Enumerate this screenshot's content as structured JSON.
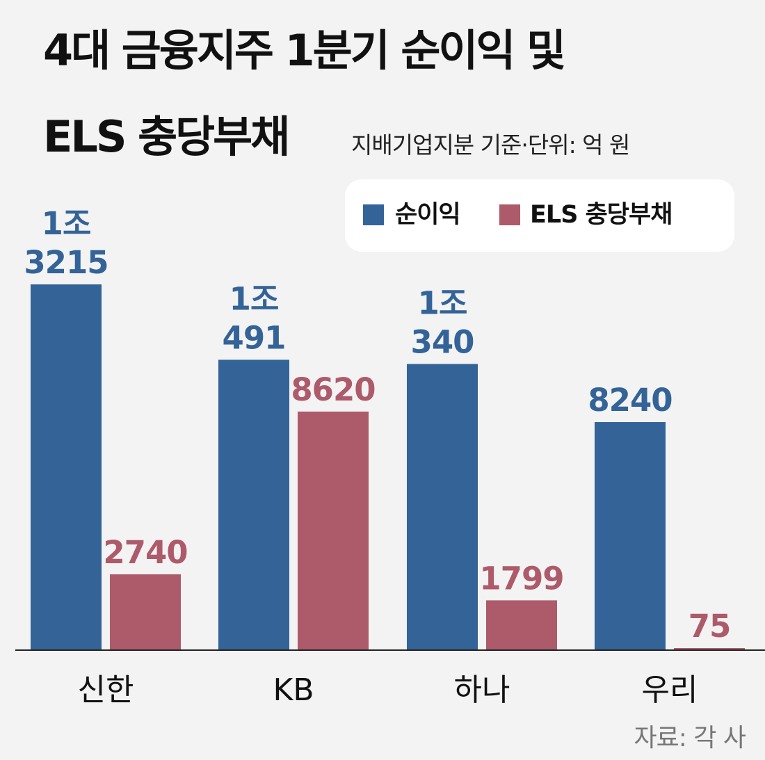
{
  "title_line1": "4대 금융지주 1분기 순이익 및",
  "title_line2": "ELS 충당부채",
  "subtitle": "지배기업지분 기준·단위: 억 원",
  "legend": [
    {
      "label": "순이익",
      "color": "#336397"
    },
    {
      "label": "ELS 충당부채",
      "color": "#ad5a6b"
    }
  ],
  "source": "자료: 각 사",
  "chart_data": {
    "type": "bar",
    "categories": [
      "신한",
      "KB",
      "하나",
      "우리"
    ],
    "series": [
      {
        "name": "순이익",
        "color": "#336397",
        "values": [
          13215,
          10491,
          10340,
          8240
        ],
        "labels": [
          [
            "1조",
            "3215"
          ],
          [
            "1조",
            "491"
          ],
          [
            "1조",
            "340"
          ],
          [
            "8240"
          ]
        ]
      },
      {
        "name": "ELS 충당부채",
        "color": "#ad5a6b",
        "values": [
          2740,
          8620,
          1799,
          75
        ],
        "labels": [
          [
            "2740"
          ],
          [
            "8620"
          ],
          [
            "1799"
          ],
          [
            "75"
          ]
        ]
      }
    ],
    "ylim": [
      0,
      13215
    ],
    "legend_position": "top-right",
    "grid": false
  }
}
